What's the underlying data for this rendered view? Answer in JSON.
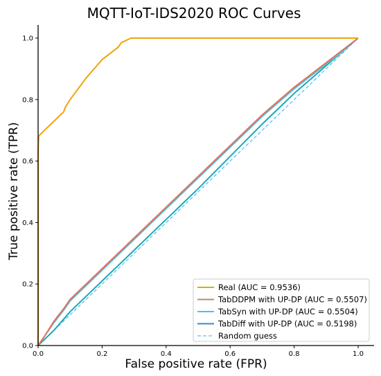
{
  "chart_data": {
    "type": "line",
    "title": "MQTT-IoT-IDS2020 ROC Curves",
    "xlabel": "False positive rate (FPR)",
    "ylabel": "True positive rate (TPR)",
    "xlim": [
      0,
      1.0
    ],
    "ylim": [
      0,
      1.0
    ],
    "xticks": [
      "0.0",
      "0.2",
      "0.4",
      "0.6",
      "0.8",
      "1.0"
    ],
    "yticks": [
      "0.0",
      "0.2",
      "0.4",
      "0.6",
      "0.8",
      "1.0"
    ],
    "grid": false,
    "legend_position": "bottom-right",
    "series": [
      {
        "name": "Real (AUC = 0.9536)",
        "color": "#f0a30a",
        "legend_color": "#c8b400",
        "style": "solid",
        "x": [
          0,
          0,
          0.002,
          0.005,
          0.02,
          0.05,
          0.08,
          0.085,
          0.1,
          0.15,
          0.2,
          0.25,
          0.26,
          0.27,
          0.28,
          0.29,
          0.3,
          0.5,
          0.8,
          1.0
        ],
        "y": [
          0,
          0.63,
          0.68,
          0.685,
          0.7,
          0.73,
          0.76,
          0.775,
          0.8,
          0.87,
          0.93,
          0.97,
          0.985,
          0.99,
          0.995,
          1.0,
          1.0,
          1.0,
          1.0,
          1.0
        ]
      },
      {
        "name": "TabDDPM with UP-DP (AUC = 0.5507)",
        "color": "#e8705a",
        "legend_color": "#b88a6a",
        "style": "solid",
        "x": [
          0,
          0.02,
          0.05,
          0.08,
          0.1,
          0.15,
          0.2,
          0.3,
          0.4,
          0.5,
          0.6,
          0.7,
          0.8,
          0.9,
          0.95,
          1.0
        ],
        "y": [
          0,
          0.03,
          0.08,
          0.12,
          0.15,
          0.2,
          0.25,
          0.35,
          0.45,
          0.55,
          0.65,
          0.75,
          0.84,
          0.92,
          0.96,
          1.0
        ]
      },
      {
        "name": "TabSyn with UP-DP (AUC = 0.5504)",
        "color": "#4fc0dd",
        "legend_color": "#4fc0dd",
        "style": "solid",
        "x": [
          0,
          0.02,
          0.05,
          0.08,
          0.1,
          0.15,
          0.2,
          0.3,
          0.4,
          0.5,
          0.6,
          0.7,
          0.8,
          0.9,
          0.95,
          1.0
        ],
        "y": [
          0,
          0.03,
          0.075,
          0.115,
          0.145,
          0.195,
          0.245,
          0.345,
          0.445,
          0.545,
          0.645,
          0.745,
          0.835,
          0.915,
          0.955,
          1.0
        ]
      },
      {
        "name": "TabDiff with UP-DP (AUC = 0.5198)",
        "color": "#1aa8b8",
        "legend_color": "#3a86cf",
        "style": "solid",
        "x": [
          0,
          0.02,
          0.05,
          0.1,
          0.2,
          0.3,
          0.4,
          0.5,
          0.6,
          0.7,
          0.8,
          0.9,
          0.95,
          1.0
        ],
        "y": [
          0,
          0.02,
          0.05,
          0.11,
          0.21,
          0.31,
          0.41,
          0.51,
          0.615,
          0.72,
          0.82,
          0.91,
          0.955,
          1.0
        ]
      },
      {
        "name": "Random guess",
        "color": "#5bc0e8",
        "legend_color": "#5bc0e8",
        "style": "dashed",
        "x": [
          0,
          1.0
        ],
        "y": [
          0,
          1.0
        ]
      }
    ]
  }
}
